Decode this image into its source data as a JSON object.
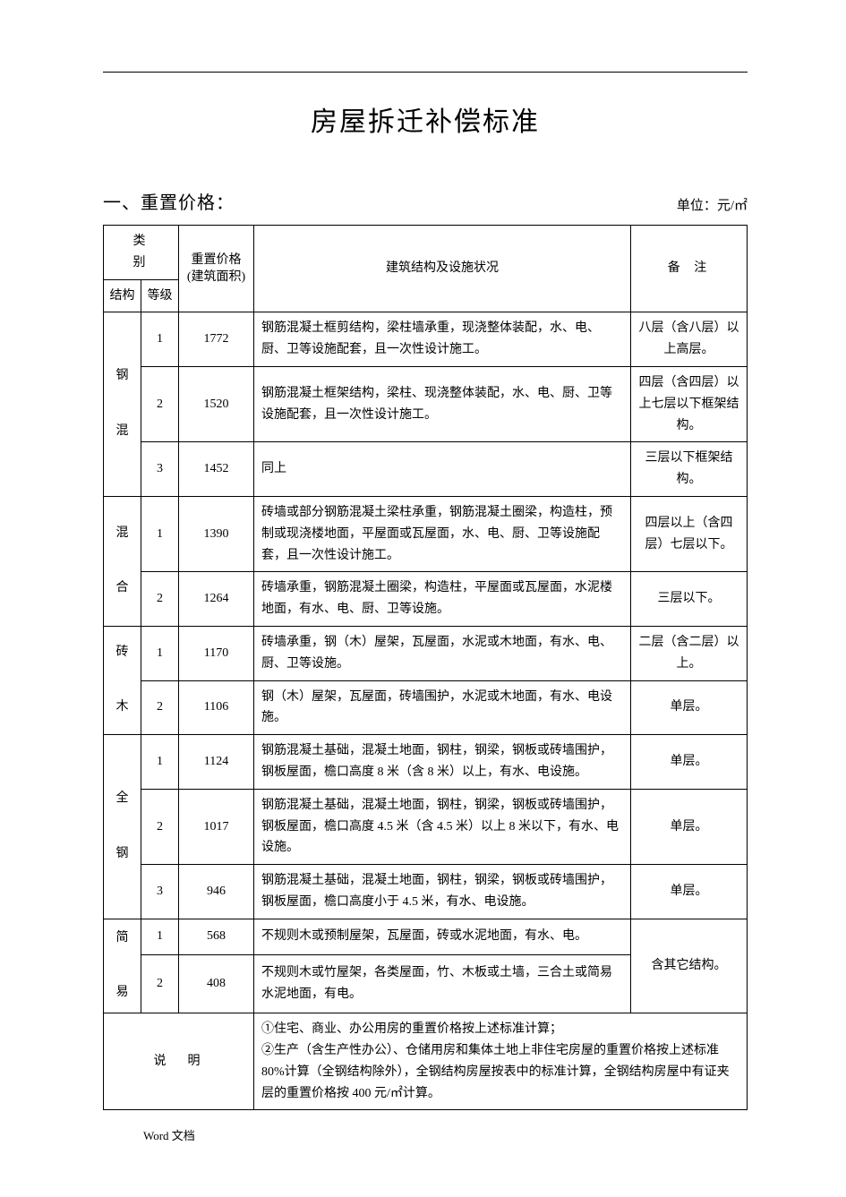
{
  "title": "房屋拆迁补偿标准",
  "section": {
    "heading": "一、重置价格：",
    "unit": "单位：元/㎡"
  },
  "headers": {
    "category": "类 别",
    "structure": "结构",
    "grade": "等级",
    "price": "重置价格\n(建筑面积)",
    "desc": "建筑结构及设施状况",
    "note": "备 注"
  },
  "groups": [
    {
      "label": "钢\n\n混",
      "rows": [
        {
          "grade": "1",
          "price": "1772",
          "desc": "钢筋混凝土框剪结构，梁柱墙承重，现浇整体装配，水、电、厨、卫等设施配套，且一次性设计施工。",
          "note": "八层（含八层）以上高层。"
        },
        {
          "grade": "2",
          "price": "1520",
          "desc": "钢筋混凝土框架结构，梁柱、现浇整体装配，水、电、厨、卫等设施配套，且一次性设计施工。",
          "note": "四层（含四层）以上七层以下框架结构。"
        },
        {
          "grade": "3",
          "price": "1452",
          "desc": "同上",
          "note": "三层以下框架结构。"
        }
      ]
    },
    {
      "label": "混\n\n合",
      "rows": [
        {
          "grade": "1",
          "price": "1390",
          "desc": "砖墙或部分钢筋混凝土梁柱承重，钢筋混凝土圈梁，构造柱，预制或现浇楼地面，平屋面或瓦屋面，水、电、厨、卫等设施配套，且一次性设计施工。",
          "note": "四层以上（含四层）七层以下。"
        },
        {
          "grade": "2",
          "price": "1264",
          "desc": "砖墙承重，钢筋混凝土圈梁，构造柱，平屋面或瓦屋面，水泥楼地面，有水、电、厨、卫等设施。",
          "note": "三层以下。"
        }
      ]
    },
    {
      "label": "砖\n\n木",
      "rows": [
        {
          "grade": "1",
          "price": "1170",
          "desc": "砖墙承重，钢（木）屋架，瓦屋面，水泥或木地面，有水、电、厨、卫等设施。",
          "note": "二层（含二层）以上。"
        },
        {
          "grade": "2",
          "price": "1106",
          "desc": "钢（木）屋架，瓦屋面，砖墙围护，水泥或木地面，有水、电设施。",
          "note": "单层。"
        }
      ]
    },
    {
      "label": "全\n\n钢",
      "rows": [
        {
          "grade": "1",
          "price": "1124",
          "desc": "钢筋混凝土基础，混凝土地面，钢柱，钢梁，钢板或砖墙围护，钢板屋面，檐口高度 8 米（含 8 米）以上，有水、电设施。",
          "note": "单层。"
        },
        {
          "grade": "2",
          "price": "1017",
          "desc": "钢筋混凝土基础，混凝土地面，钢柱，钢梁，钢板或砖墙围护，钢板屋面，檐口高度 4.5 米（含 4.5 米）以上 8 米以下，有水、电设施。",
          "note": "单层。"
        },
        {
          "grade": "3",
          "price": "946",
          "desc": "钢筋混凝土基础，混凝土地面，钢柱，钢梁，钢板或砖墙围护，钢板屋面，檐口高度小于 4.5 米，有水、电设施。",
          "note": "单层。"
        }
      ]
    },
    {
      "label": "简\n\n易",
      "note": "含其它结构。",
      "rows": [
        {
          "grade": "1",
          "price": "568",
          "desc": "不规则木或预制屋架，瓦屋面，砖或水泥地面，有水、电。"
        },
        {
          "grade": "2",
          "price": "408",
          "desc": "不规则木或竹屋架，各类屋面，竹、木板或土墙，三合土或简易水泥地面，有电。"
        }
      ]
    }
  ],
  "explain": {
    "label": "说明",
    "body": "①住宅、商业、办公用房的重置价格按上述标准计算；\n②生产（含生产性办公）、仓储用房和集体土地上非住宅房屋的重置价格按上述标准 80%计算（全钢结构除外），全钢结构房屋按表中的标准计算，全钢结构房屋中有证夹层的重置价格按 400 元/㎡计算。"
  },
  "footer": "Word  文档"
}
